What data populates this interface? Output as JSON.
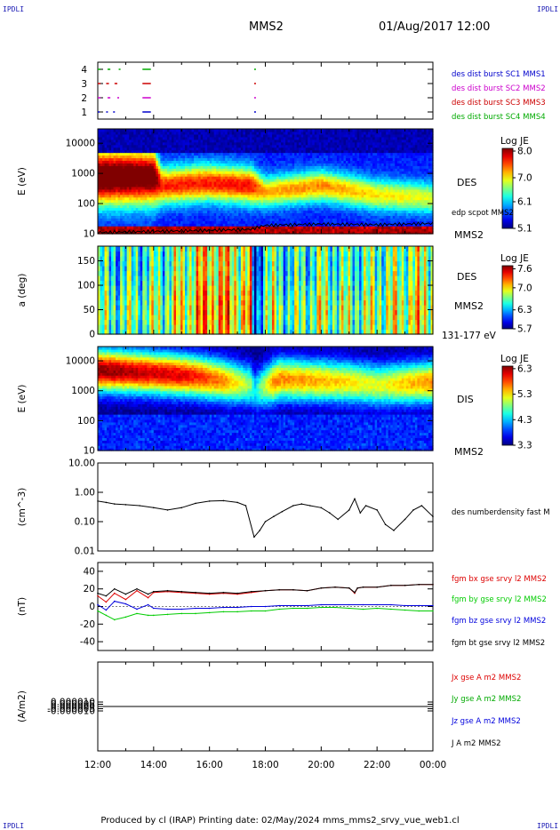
{
  "header": {
    "corner_left": "IPDLI",
    "corner_right": "IPDLI",
    "corner_bottom_left": "IPDLI",
    "corner_bottom_right": "IPDLI",
    "spacecraft": "MMS2",
    "datetime": "01/Aug/2017 12:00"
  },
  "footer": {
    "text": "Produced by cl (IRAP)   Printing date: 02/May/2024   mms_mms2_srvy_vue_web1.cl"
  },
  "time_axis": {
    "tick_labels": [
      "12:00",
      "14:00",
      "16:00",
      "18:00",
      "20:00",
      "22:00",
      "00:00"
    ]
  },
  "colors": {
    "mms1": "#0000cc",
    "mms2": "#cc00cc",
    "mms3": "#cc0000",
    "mms4": "#00aa00",
    "bx": "#dd0000",
    "by": "#00cc00",
    "bz": "#0000dd",
    "bt": "#000000"
  },
  "chart_data": [
    {
      "type": "scatter",
      "panel": "burst",
      "yticks": [
        "1",
        "2",
        "3",
        "4"
      ],
      "ylim": [
        0.5,
        4.5
      ],
      "legend": [
        "des dist burst SC1 MMS1",
        "des dist burst SC2 MMS2",
        "des dist burst SC3 MMS3",
        "des dist burst SC4 MMS4"
      ],
      "series": [
        {
          "level": 1,
          "intervals": [
            [
              12.0,
              12.05
            ],
            [
              12.3,
              12.35
            ],
            [
              12.55,
              12.6
            ],
            [
              13.6,
              13.9
            ],
            [
              17.6,
              17.65
            ]
          ]
        },
        {
          "level": 2,
          "intervals": [
            [
              12.0,
              12.1
            ],
            [
              12.35,
              12.45
            ],
            [
              12.7,
              12.75
            ],
            [
              13.6,
              13.9
            ],
            [
              17.6,
              17.65
            ]
          ]
        },
        {
          "level": 3,
          "intervals": [
            [
              12.0,
              12.1
            ],
            [
              12.3,
              12.4
            ],
            [
              12.6,
              12.7
            ],
            [
              13.6,
              13.9
            ],
            [
              17.6,
              17.65
            ]
          ]
        },
        {
          "level": 4,
          "intervals": [
            [
              12.0,
              12.1
            ],
            [
              12.35,
              12.45
            ],
            [
              12.75,
              12.8
            ],
            [
              13.6,
              13.9
            ],
            [
              17.6,
              17.65
            ]
          ]
        }
      ]
    },
    {
      "type": "heatmap",
      "panel": "des_energy",
      "ylabel": "E (eV)",
      "yscale": "log",
      "ylim": [
        10,
        30000
      ],
      "yticks": [
        "10",
        "100",
        "1000",
        "10000"
      ],
      "instrument_label": "DES",
      "overlay_label": "edp scpot MMS2",
      "spacecraft_label": "MMS2",
      "colorbar": {
        "title": "Log JE",
        "ticks": [
          "8.0",
          "7.0",
          "6.1",
          "5.1"
        ],
        "range": [
          5.1,
          8.1
        ]
      }
    },
    {
      "type": "heatmap",
      "panel": "des_pitch",
      "ylabel": "a (deg)",
      "ylim": [
        0,
        180
      ],
      "yticks": [
        "0",
        "50",
        "100",
        "150"
      ],
      "instrument_label": "DES",
      "spacecraft_label": "MMS2",
      "energy_label": "131-177 eV",
      "colorbar": {
        "title": "Log JE",
        "ticks": [
          "7.6",
          "7.0",
          "6.3",
          "5.7"
        ],
        "range": [
          5.7,
          7.7
        ]
      }
    },
    {
      "type": "heatmap",
      "panel": "dis_energy",
      "ylabel": "E (eV)",
      "yscale": "log",
      "ylim": [
        10,
        30000
      ],
      "yticks": [
        "10",
        "100",
        "1000",
        "10000"
      ],
      "instrument_label": "DIS",
      "spacecraft_label": "MMS2",
      "colorbar": {
        "title": "Log JE",
        "ticks": [
          "6.3",
          "5.3",
          "4.3",
          "3.3"
        ],
        "range": [
          3.3,
          6.4
        ]
      }
    },
    {
      "type": "line",
      "panel": "density",
      "ylabel": "(cm^-3)",
      "yscale": "log",
      "ylim": [
        0.01,
        10
      ],
      "yticks": [
        "0.01",
        "0.10",
        "1.00",
        "10.00"
      ],
      "series": [
        {
          "name": "des numberdensity fast M",
          "x": [
            12.0,
            12.3,
            12.6,
            13.0,
            13.5,
            14.0,
            14.5,
            15.0,
            15.5,
            16.0,
            16.5,
            17.0,
            17.3,
            17.6,
            17.8,
            18.0,
            18.3,
            18.6,
            19.0,
            19.3,
            19.6,
            20.0,
            20.3,
            20.6,
            21.0,
            21.2,
            21.4,
            21.6,
            22.0,
            22.3,
            22.6,
            23.0,
            23.3,
            23.6,
            24.0
          ],
          "y": [
            0.5,
            0.45,
            0.4,
            0.38,
            0.35,
            0.3,
            0.25,
            0.3,
            0.42,
            0.5,
            0.52,
            0.45,
            0.35,
            0.03,
            0.05,
            0.1,
            0.15,
            0.22,
            0.35,
            0.4,
            0.35,
            0.3,
            0.2,
            0.12,
            0.25,
            0.6,
            0.2,
            0.35,
            0.25,
            0.08,
            0.05,
            0.12,
            0.25,
            0.35,
            0.15
          ]
        }
      ]
    },
    {
      "type": "line",
      "panel": "magnetic_field",
      "ylabel": "(nT)",
      "ylim": [
        -50,
        50
      ],
      "yticks": [
        "-40",
        "-20",
        "0",
        "20",
        "40"
      ],
      "series": [
        {
          "name": "fgm bx gse srvy l2 MMS2",
          "x": [
            12.0,
            12.3,
            12.6,
            13.0,
            13.4,
            13.8,
            14.0,
            14.5,
            15.0,
            15.5,
            16.0,
            16.5,
            17.0,
            17.5,
            18.0,
            18.5,
            19.0,
            19.5,
            20.0,
            20.5,
            21.0,
            21.2,
            21.3,
            21.5,
            22.0,
            22.5,
            23.0,
            23.5,
            24.0
          ],
          "y": [
            12,
            5,
            15,
            8,
            18,
            10,
            16,
            17,
            16,
            15,
            14,
            15,
            14,
            16,
            18,
            19,
            19,
            18,
            21,
            22,
            21,
            15,
            21,
            22,
            22,
            24,
            24,
            25,
            25
          ]
        },
        {
          "name": "fgm by gse srvy l2 MMS2",
          "x": [
            12.0,
            12.3,
            12.6,
            13.0,
            13.4,
            13.8,
            14.0,
            14.5,
            15.0,
            15.5,
            16.0,
            16.5,
            17.0,
            17.5,
            18.0,
            18.5,
            19.0,
            19.5,
            20.0,
            20.5,
            21.0,
            21.5,
            22.0,
            22.5,
            23.0,
            23.5,
            24.0
          ],
          "y": [
            -5,
            -10,
            -15,
            -12,
            -8,
            -10,
            -10,
            -9,
            -8,
            -8,
            -7,
            -6,
            -6,
            -5,
            -5,
            -3,
            -2,
            -2,
            -1,
            -1,
            -2,
            -3,
            -2,
            -3,
            -4,
            -5,
            -5
          ]
        },
        {
          "name": "fgm bz gse srvy l2 MMS2",
          "x": [
            12.0,
            12.3,
            12.6,
            13.0,
            13.4,
            13.8,
            14.0,
            14.5,
            15.0,
            15.5,
            16.0,
            16.5,
            17.0,
            17.5,
            18.0,
            18.5,
            19.0,
            19.5,
            20.0,
            20.5,
            21.0,
            21.5,
            22.0,
            22.5,
            23.0,
            23.5,
            24.0
          ],
          "y": [
            2,
            -4,
            6,
            3,
            -3,
            2,
            -2,
            -3,
            -3,
            -2,
            -2,
            -1,
            -1,
            0,
            0,
            1,
            1,
            1,
            2,
            2,
            2,
            2,
            2,
            2,
            1,
            1,
            1
          ]
        },
        {
          "name": "fgm bt gse srvy l2 MMS2",
          "x": [
            12.0,
            12.3,
            12.6,
            13.0,
            13.4,
            13.8,
            14.0,
            14.5,
            15.0,
            15.5,
            16.0,
            16.5,
            17.0,
            17.5,
            18.0,
            18.5,
            19.0,
            19.5,
            20.0,
            20.5,
            21.0,
            21.2,
            21.3,
            21.5,
            22.0,
            22.5,
            23.0,
            23.5,
            24.0
          ],
          "y": [
            15,
            12,
            20,
            14,
            20,
            14,
            17,
            18,
            17,
            16,
            15,
            16,
            15,
            17,
            18,
            19,
            19,
            18,
            21,
            22,
            21,
            16,
            21,
            22,
            22,
            24,
            24,
            25,
            25
          ]
        }
      ]
    },
    {
      "type": "line",
      "panel": "current_density",
      "ylabel": "(A/m2)",
      "ylim": [
        -0.0001,
        0.0001
      ],
      "yticks": [
        "-0.000010",
        "-0.000005",
        "0.000000",
        "0.000005",
        "0.000010"
      ],
      "series": [
        {
          "name": "Jx gse A m2 MMS2",
          "x": [
            12.0,
            24.0
          ],
          "y": [
            0,
            0
          ]
        },
        {
          "name": "Jy gse A m2 MMS2",
          "x": [
            12.0,
            24.0
          ],
          "y": [
            0,
            0
          ]
        },
        {
          "name": "Jz gse A m2 MMS2",
          "x": [
            12.0,
            24.0
          ],
          "y": [
            0,
            0
          ]
        },
        {
          "name": "J A m2 MMS2",
          "x": [
            12.0,
            24.0
          ],
          "y": [
            0,
            0
          ]
        }
      ]
    }
  ]
}
